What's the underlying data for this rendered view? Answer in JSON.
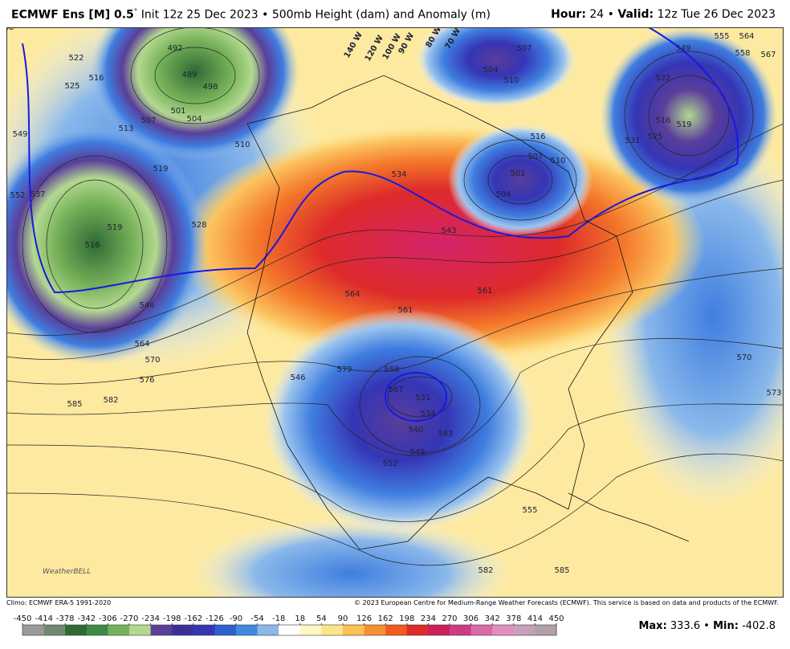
{
  "header": {
    "title": "ECMWF Ens [M] 0.5",
    "degree": "°",
    "init": "Init 12z 25 Dec 2023",
    "sep": "•",
    "product": "500mb Height (dam) and Anomaly (m)",
    "hour_label": "Hour:",
    "hour": 24,
    "valid_label": "Valid:",
    "valid": "12z Tue 26 Dec 2023"
  },
  "map": {
    "logo": "WeatherBELL",
    "longitude_labels": [
      "140 W",
      "120 W",
      "100 W",
      "90 W",
      "80 W",
      "70 W"
    ],
    "contour_labels": [
      522,
      525,
      516,
      549,
      552,
      537,
      513,
      519,
      519,
      516,
      528,
      546,
      564,
      570,
      576,
      582,
      585,
      492,
      489,
      498,
      501,
      504,
      507,
      510,
      534,
      543,
      564,
      561,
      561,
      501,
      504,
      507,
      510,
      516,
      504,
      507,
      510,
      531,
      525,
      522,
      516,
      519,
      549,
      555,
      558,
      564,
      567,
      570,
      573,
      579,
      558,
      546,
      567,
      531,
      534,
      540,
      543,
      549,
      552,
      555,
      582,
      585,
      588
    ]
  },
  "footer": {
    "climo": "Climo: ECMWF ERA-5 1991-2020",
    "copyright": "© 2023 European Centre for Medium-Range Weather Forecasts (ECMWF). This service is based on data and products of the ECMWF.",
    "max_label": "Max:",
    "max": 333.6,
    "sep": "•",
    "min_label": "Min:",
    "min": -402.8
  },
  "colorbar": {
    "ticks": [
      -450,
      -414,
      -378,
      -342,
      -306,
      -270,
      -234,
      -198,
      -162,
      -126,
      -90,
      -54,
      -18,
      18,
      54,
      90,
      126,
      162,
      198,
      234,
      270,
      306,
      342,
      378,
      414,
      450
    ],
    "colors": [
      "#9a9a9a",
      "#6f8a70",
      "#2f6a35",
      "#3f8a45",
      "#77b25a",
      "#b3d890",
      "#5a3e9a",
      "#3a2f9a",
      "#3535b5",
      "#2f5fd0",
      "#3f8ae0",
      "#8ab8ea",
      "#ffffff",
      "#fff7c0",
      "#fde48a",
      "#fbc056",
      "#f79030",
      "#f05a1f",
      "#de2a28",
      "#cc1f5a",
      "#cf3a86",
      "#d86aa8",
      "#e090c0",
      "#c8a0b8",
      "#b0a0a8"
    ]
  }
}
